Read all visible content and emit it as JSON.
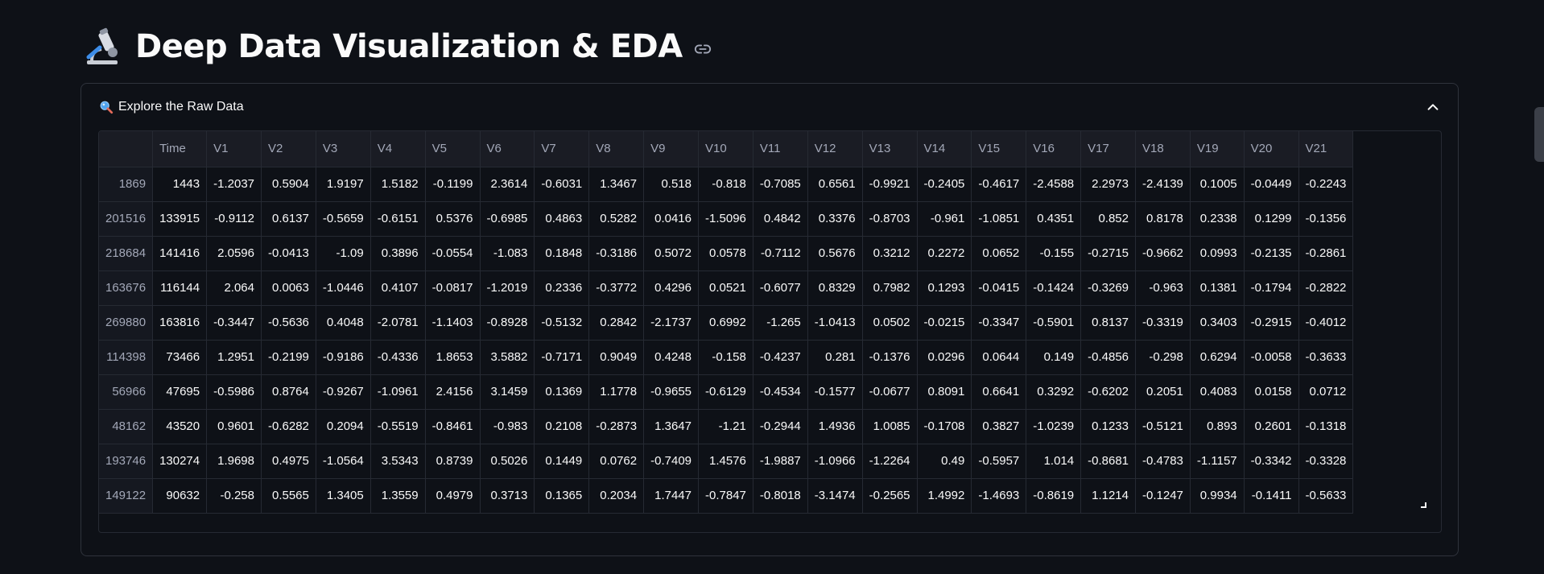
{
  "page": {
    "title": "Deep Data Visualization & EDA"
  },
  "expander": {
    "label": "Explore the Raw Data"
  },
  "table": {
    "columns": [
      "",
      "Time",
      "V1",
      "V2",
      "V3",
      "V4",
      "V5",
      "V6",
      "V7",
      "V8",
      "V9",
      "V10",
      "V11",
      "V12",
      "V13",
      "V14",
      "V15",
      "V16",
      "V17",
      "V18",
      "V19",
      "V20",
      "V21"
    ],
    "rows": [
      [
        "1869",
        "1443",
        "-1.2037",
        "0.5904",
        "1.9197",
        "1.5182",
        "-0.1199",
        "2.3614",
        "-0.6031",
        "1.3467",
        "0.518",
        "-0.818",
        "-0.7085",
        "0.6561",
        "-0.9921",
        "-0.2405",
        "-0.4617",
        "-2.4588",
        "2.2973",
        "-2.4139",
        "0.1005",
        "-0.0449",
        "-0.2243"
      ],
      [
        "201516",
        "133915",
        "-0.9112",
        "0.6137",
        "-0.5659",
        "-0.6151",
        "0.5376",
        "-0.6985",
        "0.4863",
        "0.5282",
        "0.0416",
        "-1.5096",
        "0.4842",
        "0.3376",
        "-0.8703",
        "-0.961",
        "-1.0851",
        "0.4351",
        "0.852",
        "0.8178",
        "0.2338",
        "0.1299",
        "-0.1356"
      ],
      [
        "218684",
        "141416",
        "2.0596",
        "-0.0413",
        "-1.09",
        "0.3896",
        "-0.0554",
        "-1.083",
        "0.1848",
        "-0.3186",
        "0.5072",
        "0.0578",
        "-0.7112",
        "0.5676",
        "0.3212",
        "0.2272",
        "0.0652",
        "-0.155",
        "-0.2715",
        "-0.9662",
        "0.0993",
        "-0.2135",
        "-0.2861"
      ],
      [
        "163676",
        "116144",
        "2.064",
        "0.0063",
        "-1.0446",
        "0.4107",
        "-0.0817",
        "-1.2019",
        "0.2336",
        "-0.3772",
        "0.4296",
        "0.0521",
        "-0.6077",
        "0.8329",
        "0.7982",
        "0.1293",
        "-0.0415",
        "-0.1424",
        "-0.3269",
        "-0.963",
        "0.1381",
        "-0.1794",
        "-0.2822"
      ],
      [
        "269880",
        "163816",
        "-0.3447",
        "-0.5636",
        "0.4048",
        "-2.0781",
        "-1.1403",
        "-0.8928",
        "-0.5132",
        "0.2842",
        "-2.1737",
        "0.6992",
        "-1.265",
        "-1.0413",
        "0.0502",
        "-0.0215",
        "-0.3347",
        "-0.5901",
        "0.8137",
        "-0.3319",
        "0.3403",
        "-0.2915",
        "-0.4012"
      ],
      [
        "114398",
        "73466",
        "1.2951",
        "-0.2199",
        "-0.9186",
        "-0.4336",
        "1.8653",
        "3.5882",
        "-0.7171",
        "0.9049",
        "0.4248",
        "-0.158",
        "-0.4237",
        "0.281",
        "-0.1376",
        "0.0296",
        "0.0644",
        "0.149",
        "-0.4856",
        "-0.298",
        "0.6294",
        "-0.0058",
        "-0.3633"
      ],
      [
        "56966",
        "47695",
        "-0.5986",
        "0.8764",
        "-0.9267",
        "-1.0961",
        "2.4156",
        "3.1459",
        "0.1369",
        "1.1778",
        "-0.9655",
        "-0.6129",
        "-0.4534",
        "-0.1577",
        "-0.0677",
        "0.8091",
        "0.6641",
        "0.3292",
        "-0.6202",
        "0.2051",
        "0.4083",
        "0.0158",
        "0.0712"
      ],
      [
        "48162",
        "43520",
        "0.9601",
        "-0.6282",
        "0.2094",
        "-0.5519",
        "-0.8461",
        "-0.983",
        "0.2108",
        "-0.2873",
        "1.3647",
        "-1.21",
        "-0.2944",
        "1.4936",
        "1.0085",
        "-0.1708",
        "0.3827",
        "-1.0239",
        "0.1233",
        "-0.5121",
        "0.893",
        "0.2601",
        "-0.1318"
      ],
      [
        "193746",
        "130274",
        "1.9698",
        "0.4975",
        "-1.0564",
        "3.5343",
        "0.8739",
        "0.5026",
        "0.1449",
        "0.0762",
        "-0.7409",
        "1.4576",
        "-1.9887",
        "-1.0966",
        "-1.2264",
        "0.49",
        "-0.5957",
        "1.014",
        "-0.8681",
        "-0.4783",
        "-1.1157",
        "-0.3342",
        "-0.3328"
      ],
      [
        "149122",
        "90632",
        "-0.258",
        "0.5565",
        "1.3405",
        "1.3559",
        "0.4979",
        "0.3713",
        "0.1365",
        "0.2034",
        "1.7447",
        "-0.7847",
        "-0.8018",
        "-3.1474",
        "-0.2565",
        "1.4992",
        "-1.4693",
        "-0.8619",
        "1.1214",
        "-0.1247",
        "0.9934",
        "-0.1411",
        "-0.5633"
      ]
    ]
  },
  "colors": {
    "background": "#0e1117",
    "text": "#fafafa",
    "muted": "#a3a8b8",
    "border": "#262a33"
  },
  "icons": {
    "title": "microscope-icon",
    "anchor": "link-icon",
    "expander": "search-icon",
    "collapse": "chevron-up-icon"
  }
}
